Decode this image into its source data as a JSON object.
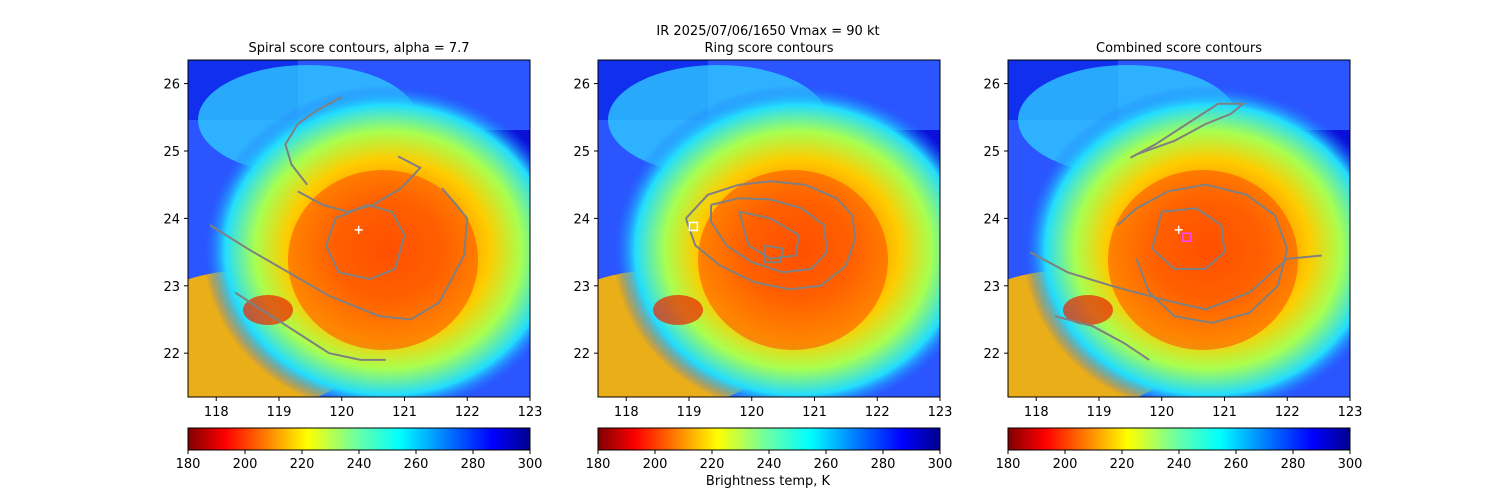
{
  "figure": {
    "suptitle_line": "IR  2025/07/06/1650    Vmax = 90 kt",
    "colorbar_label": "Brightness temp, K"
  },
  "chart_data": [
    {
      "type": "heatmap",
      "title": "Spiral score contours, alpha =  7.7",
      "xlim": [
        117.55,
        123.0
      ],
      "ylim": [
        21.35,
        26.35
      ],
      "xticks": [
        "118",
        "119",
        "120",
        "121",
        "122",
        "123"
      ],
      "yticks": [
        "22",
        "23",
        "24",
        "25",
        "26"
      ],
      "colorbar": {
        "min": 180,
        "max": 300,
        "ticks": [
          "180",
          "200",
          "220",
          "240",
          "260",
          "280",
          "300"
        ],
        "colormap": "jet_r"
      },
      "markers": [
        {
          "kind": "plus",
          "lon": 120.27,
          "lat": 23.83,
          "color": "#ffffff"
        }
      ],
      "contour_color": "#808080",
      "contours": [
        [
          [
            120.0,
            25.8
          ],
          [
            119.6,
            25.6
          ],
          [
            119.3,
            25.4
          ],
          [
            119.1,
            25.1
          ],
          [
            119.2,
            24.8
          ],
          [
            119.45,
            24.5
          ]
        ],
        [
          [
            119.3,
            24.4
          ],
          [
            119.7,
            24.2
          ],
          [
            120.1,
            24.1
          ],
          [
            120.5,
            24.2
          ],
          [
            120.95,
            24.45
          ],
          [
            121.25,
            24.75
          ],
          [
            120.9,
            24.92
          ]
        ],
        [
          [
            120.4,
            24.2
          ],
          [
            120.8,
            24.1
          ],
          [
            121.0,
            23.75
          ],
          [
            120.85,
            23.25
          ],
          [
            120.45,
            23.1
          ],
          [
            119.95,
            23.2
          ],
          [
            119.75,
            23.6
          ],
          [
            119.9,
            24.0
          ],
          [
            120.4,
            24.2
          ]
        ],
        [
          [
            117.9,
            23.9
          ],
          [
            118.5,
            23.55
          ],
          [
            119.15,
            23.2
          ],
          [
            119.8,
            22.85
          ],
          [
            120.6,
            22.55
          ],
          [
            121.1,
            22.5
          ],
          [
            121.55,
            22.75
          ],
          [
            121.95,
            23.45
          ],
          [
            122.0,
            24.0
          ],
          [
            121.6,
            24.45
          ]
        ],
        [
          [
            118.3,
            22.9
          ],
          [
            118.8,
            22.6
          ],
          [
            119.3,
            22.3
          ],
          [
            119.8,
            22.0
          ],
          [
            120.3,
            21.9
          ],
          [
            120.7,
            21.9
          ]
        ]
      ]
    },
    {
      "type": "heatmap",
      "title": "Ring score contours",
      "xlim": [
        117.55,
        123.0
      ],
      "ylim": [
        21.35,
        26.35
      ],
      "xticks": [
        "118",
        "119",
        "120",
        "121",
        "122",
        "123"
      ],
      "yticks": [
        "22",
        "23",
        "24",
        "25",
        "26"
      ],
      "colorbar": {
        "min": 180,
        "max": 300,
        "ticks": [
          "180",
          "200",
          "220",
          "240",
          "260",
          "280",
          "300"
        ],
        "colormap": "jet_r"
      },
      "markers": [
        {
          "kind": "square",
          "lon": 119.07,
          "lat": 23.88,
          "color": "#ffffff"
        }
      ],
      "contour_color": "#808080",
      "contours": [
        [
          [
            118.95,
            24.0
          ],
          [
            119.3,
            24.35
          ],
          [
            119.8,
            24.5
          ],
          [
            120.3,
            24.55
          ],
          [
            120.85,
            24.5
          ],
          [
            121.35,
            24.3
          ],
          [
            121.6,
            24.05
          ],
          [
            121.65,
            23.7
          ],
          [
            121.5,
            23.3
          ],
          [
            121.1,
            23.0
          ],
          [
            120.6,
            22.95
          ],
          [
            120.05,
            23.05
          ],
          [
            119.5,
            23.3
          ],
          [
            119.1,
            23.6
          ],
          [
            118.95,
            24.0
          ]
        ],
        [
          [
            119.35,
            24.2
          ],
          [
            119.8,
            24.3
          ],
          [
            120.3,
            24.28
          ],
          [
            120.8,
            24.15
          ],
          [
            121.15,
            23.9
          ],
          [
            121.2,
            23.5
          ],
          [
            120.95,
            23.25
          ],
          [
            120.5,
            23.2
          ],
          [
            120.0,
            23.35
          ],
          [
            119.6,
            23.6
          ],
          [
            119.35,
            23.95
          ],
          [
            119.35,
            24.2
          ]
        ],
        [
          [
            119.8,
            24.1
          ],
          [
            120.3,
            24.0
          ],
          [
            120.75,
            23.75
          ],
          [
            120.7,
            23.45
          ],
          [
            120.3,
            23.4
          ],
          [
            119.95,
            23.6
          ],
          [
            119.8,
            24.1
          ]
        ],
        [
          [
            120.2,
            23.6
          ],
          [
            120.5,
            23.55
          ],
          [
            120.45,
            23.35
          ],
          [
            120.2,
            23.35
          ],
          [
            120.2,
            23.6
          ]
        ]
      ]
    },
    {
      "type": "heatmap",
      "title": "Combined score contours",
      "xlim": [
        117.55,
        123.0
      ],
      "ylim": [
        21.35,
        26.35
      ],
      "xticks": [
        "118",
        "119",
        "120",
        "121",
        "122",
        "123"
      ],
      "yticks": [
        "22",
        "23",
        "24",
        "25",
        "26"
      ],
      "colorbar": {
        "min": 180,
        "max": 300,
        "ticks": [
          "180",
          "200",
          "220",
          "240",
          "260",
          "280",
          "300"
        ],
        "colormap": "jet_r"
      },
      "markers": [
        {
          "kind": "plus",
          "lon": 120.27,
          "lat": 23.83,
          "color": "#ffffff"
        },
        {
          "kind": "square",
          "lon": 120.4,
          "lat": 23.72,
          "color": "#ff44ff"
        }
      ],
      "contour_color": "#808080",
      "contours": [
        [
          [
            119.5,
            24.9
          ],
          [
            119.9,
            25.1
          ],
          [
            120.4,
            25.4
          ],
          [
            120.9,
            25.7
          ],
          [
            121.3,
            25.7
          ],
          [
            121.1,
            25.55
          ],
          [
            120.7,
            25.4
          ],
          [
            120.2,
            25.15
          ],
          [
            119.6,
            24.95
          ],
          [
            119.5,
            24.9
          ]
        ],
        [
          [
            119.3,
            23.9
          ],
          [
            119.6,
            24.15
          ],
          [
            120.1,
            24.4
          ],
          [
            120.7,
            24.5
          ],
          [
            121.35,
            24.35
          ],
          [
            121.8,
            24.05
          ],
          [
            122.0,
            23.55
          ],
          [
            121.85,
            23.0
          ],
          [
            121.4,
            22.6
          ],
          [
            120.8,
            22.45
          ],
          [
            120.2,
            22.55
          ],
          [
            119.8,
            22.9
          ],
          [
            119.6,
            23.4
          ]
        ],
        [
          [
            120.0,
            24.1
          ],
          [
            120.55,
            24.15
          ],
          [
            120.95,
            23.9
          ],
          [
            121.0,
            23.5
          ],
          [
            120.7,
            23.25
          ],
          [
            120.2,
            23.25
          ],
          [
            119.85,
            23.55
          ],
          [
            120.0,
            24.1
          ]
        ],
        [
          [
            117.9,
            23.5
          ],
          [
            118.5,
            23.2
          ],
          [
            119.2,
            23.0
          ],
          [
            120.0,
            22.8
          ],
          [
            120.7,
            22.65
          ],
          [
            121.4,
            22.9
          ],
          [
            122.0,
            23.4
          ],
          [
            122.55,
            23.45
          ]
        ],
        [
          [
            118.3,
            22.55
          ],
          [
            118.9,
            22.4
          ],
          [
            119.4,
            22.15
          ],
          [
            119.8,
            21.9
          ]
        ]
      ]
    }
  ]
}
